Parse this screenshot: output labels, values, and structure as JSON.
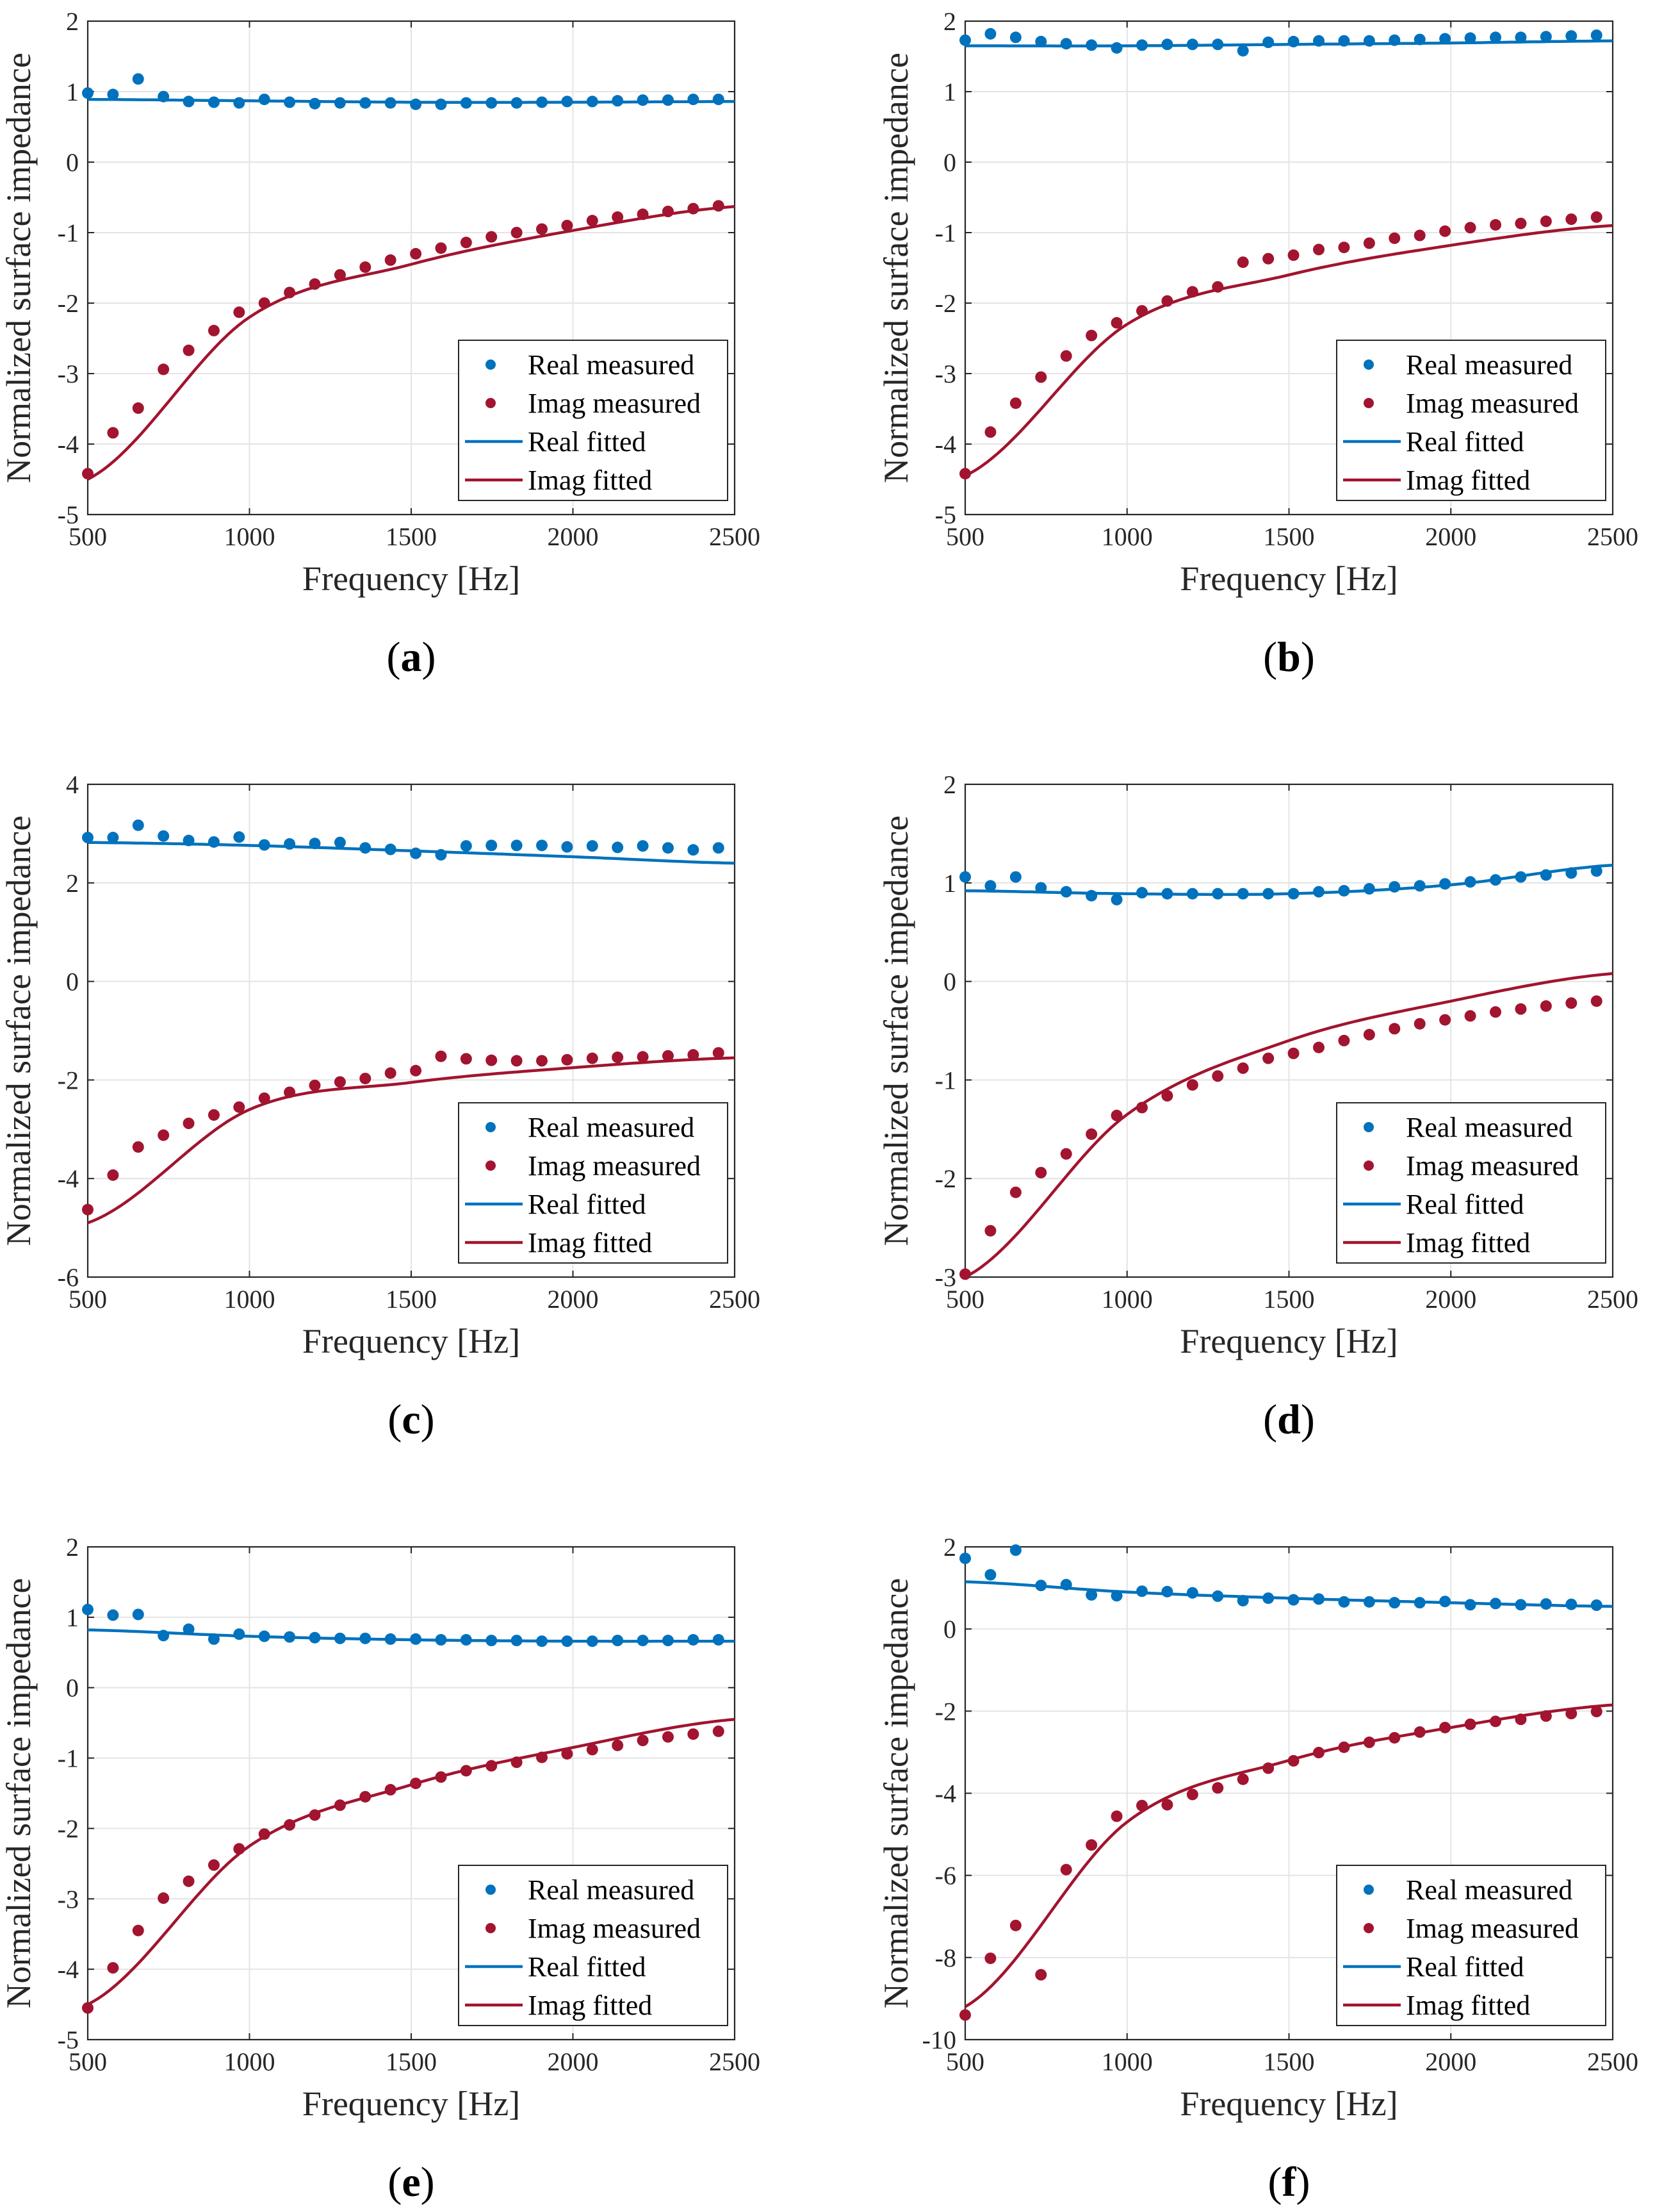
{
  "figure": {
    "colors": {
      "real": "#0072BD",
      "imag": "#A2142F"
    }
  },
  "chart_data": [
    {
      "type": "scatter",
      "panel_label": "a",
      "xlabel": "Frequency [Hz]",
      "ylabel": "Normalized surface impedance",
      "xlim": [
        500,
        2500
      ],
      "ylim": [
        -5,
        2
      ],
      "xticks": [
        500,
        1000,
        1500,
        2000,
        2500
      ],
      "yticks": [
        -5,
        -4,
        -3,
        -2,
        -1,
        0,
        1,
        2
      ],
      "grid": true,
      "legend_position": "bottom-right",
      "legend": [
        "Real measured",
        "Imag measured",
        "Real fitted",
        "Imag fitted"
      ],
      "x": [
        500,
        578,
        656,
        734,
        812,
        890,
        968,
        1046,
        1124,
        1202,
        1280,
        1358,
        1436,
        1514,
        1592,
        1670,
        1748,
        1826,
        1904,
        1982,
        2060,
        2138,
        2216,
        2294,
        2372,
        2450
      ],
      "series": [
        {
          "name": "Real measured",
          "style": "markers",
          "values": [
            0.98,
            0.96,
            1.18,
            0.93,
            0.86,
            0.85,
            0.84,
            0.89,
            0.85,
            0.83,
            0.84,
            0.84,
            0.84,
            0.82,
            0.82,
            0.84,
            0.84,
            0.84,
            0.85,
            0.86,
            0.86,
            0.87,
            0.88,
            0.88,
            0.89,
            0.89
          ]
        },
        {
          "name": "Imag measured",
          "style": "markers",
          "values": [
            -4.42,
            -3.84,
            -3.49,
            -2.94,
            -2.67,
            -2.39,
            -2.13,
            -2.0,
            -1.85,
            -1.73,
            -1.6,
            -1.49,
            -1.39,
            -1.3,
            -1.22,
            -1.14,
            -1.06,
            -1.0,
            -0.95,
            -0.9,
            -0.83,
            -0.78,
            -0.74,
            -0.7,
            -0.66,
            -0.62
          ]
        },
        {
          "name": "Real fitted",
          "style": "line",
          "values": [
            0.89,
            0.87,
            0.85,
            0.85,
            0.86
          ]
        },
        {
          "name": "Imag fitted",
          "style": "line",
          "values": [
            -4.5,
            -2.2,
            -1.45,
            -0.97,
            -0.63
          ]
        }
      ]
    },
    {
      "type": "scatter",
      "panel_label": "b",
      "xlabel": "Frequency [Hz]",
      "ylabel": "Normalized surface impedance",
      "xlim": [
        500,
        2500
      ],
      "ylim": [
        -5,
        2
      ],
      "xticks": [
        500,
        1000,
        1500,
        2000,
        2500
      ],
      "yticks": [
        -5,
        -4,
        -3,
        -2,
        -1,
        0,
        1,
        2
      ],
      "grid": true,
      "legend_position": "bottom-right",
      "legend": [
        "Real measured",
        "Imag measured",
        "Real fitted",
        "Imag fitted"
      ],
      "x": [
        500,
        578,
        656,
        734,
        812,
        890,
        968,
        1046,
        1124,
        1202,
        1280,
        1358,
        1436,
        1514,
        1592,
        1670,
        1748,
        1826,
        1904,
        1982,
        2060,
        2138,
        2216,
        2294,
        2372,
        2450
      ],
      "series": [
        {
          "name": "Real measured",
          "style": "markers",
          "values": [
            1.73,
            1.82,
            1.77,
            1.71,
            1.68,
            1.66,
            1.62,
            1.66,
            1.67,
            1.67,
            1.67,
            1.58,
            1.7,
            1.71,
            1.72,
            1.72,
            1.72,
            1.73,
            1.74,
            1.75,
            1.76,
            1.77,
            1.77,
            1.78,
            1.79,
            1.8
          ]
        },
        {
          "name": "Imag measured",
          "style": "markers",
          "values": [
            -4.42,
            -3.83,
            -3.42,
            -3.05,
            -2.75,
            -2.46,
            -2.28,
            -2.11,
            -1.97,
            -1.84,
            -1.77,
            -1.42,
            -1.37,
            -1.32,
            -1.24,
            -1.21,
            -1.15,
            -1.08,
            -1.04,
            -0.98,
            -0.93,
            -0.89,
            -0.87,
            -0.84,
            -0.81,
            -0.78
          ]
        },
        {
          "name": "Real fitted",
          "style": "line",
          "values": [
            1.65,
            1.65,
            1.67,
            1.69,
            1.72
          ]
        },
        {
          "name": "Imag fitted",
          "style": "line",
          "values": [
            -4.45,
            -2.3,
            -1.6,
            -1.18,
            -0.9
          ]
        }
      ]
    },
    {
      "type": "scatter",
      "panel_label": "c",
      "xlabel": "Frequency [Hz]",
      "ylabel": "Normalized surface impedance",
      "xlim": [
        500,
        2500
      ],
      "ylim": [
        -6,
        4
      ],
      "xticks": [
        500,
        1000,
        1500,
        2000,
        2500
      ],
      "yticks": [
        -6,
        -4,
        -2,
        0,
        2,
        4
      ],
      "grid": true,
      "legend_position": "bottom-right",
      "legend": [
        "Real measured",
        "Imag measured",
        "Real fitted",
        "Imag fitted"
      ],
      "x": [
        500,
        578,
        656,
        734,
        812,
        890,
        968,
        1046,
        1124,
        1202,
        1280,
        1358,
        1436,
        1514,
        1592,
        1670,
        1748,
        1826,
        1904,
        1982,
        2060,
        2138,
        2216,
        2294,
        2372,
        2450
      ],
      "series": [
        {
          "name": "Real measured",
          "style": "markers",
          "values": [
            2.92,
            2.92,
            3.17,
            2.95,
            2.86,
            2.83,
            2.93,
            2.77,
            2.79,
            2.8,
            2.82,
            2.71,
            2.68,
            2.6,
            2.57,
            2.75,
            2.76,
            2.76,
            2.76,
            2.73,
            2.75,
            2.72,
            2.75,
            2.71,
            2.67,
            2.71
          ]
        },
        {
          "name": "Imag measured",
          "style": "markers",
          "values": [
            -4.63,
            -3.93,
            -3.36,
            -3.12,
            -2.88,
            -2.71,
            -2.55,
            -2.37,
            -2.25,
            -2.11,
            -2.04,
            -1.97,
            -1.86,
            -1.81,
            -1.52,
            -1.57,
            -1.6,
            -1.61,
            -1.61,
            -1.59,
            -1.56,
            -1.54,
            -1.53,
            -1.51,
            -1.49,
            -1.45
          ]
        },
        {
          "name": "Real fitted",
          "style": "line",
          "values": [
            2.82,
            2.76,
            2.65,
            2.53,
            2.4
          ]
        },
        {
          "name": "Imag fitted",
          "style": "line",
          "values": [
            -4.9,
            -2.6,
            -2.05,
            -1.75,
            -1.55
          ]
        }
      ]
    },
    {
      "type": "scatter",
      "panel_label": "d",
      "xlabel": "Frequency [Hz]",
      "ylabel": "Normalized surface impedance",
      "xlim": [
        500,
        2500
      ],
      "ylim": [
        -3,
        2
      ],
      "xticks": [
        500,
        1000,
        1500,
        2000,
        2500
      ],
      "yticks": [
        -3,
        -2,
        -1,
        0,
        1,
        2
      ],
      "grid": true,
      "legend_position": "bottom-right",
      "legend": [
        "Real measured",
        "Imag measured",
        "Real fitted",
        "Imag fitted"
      ],
      "x": [
        500,
        578,
        656,
        734,
        812,
        890,
        968,
        1046,
        1124,
        1202,
        1280,
        1358,
        1436,
        1514,
        1592,
        1670,
        1748,
        1826,
        1904,
        1982,
        2060,
        2138,
        2216,
        2294,
        2372,
        2450
      ],
      "series": [
        {
          "name": "Real measured",
          "style": "markers",
          "values": [
            1.06,
            0.97,
            1.06,
            0.95,
            0.91,
            0.87,
            0.83,
            0.9,
            0.89,
            0.89,
            0.89,
            0.89,
            0.89,
            0.89,
            0.91,
            0.92,
            0.94,
            0.96,
            0.97,
            0.99,
            1.01,
            1.03,
            1.06,
            1.08,
            1.1,
            1.12
          ]
        },
        {
          "name": "Imag measured",
          "style": "markers",
          "values": [
            -2.97,
            -2.53,
            -2.14,
            -1.94,
            -1.75,
            -1.55,
            -1.36,
            -1.28,
            -1.16,
            -1.05,
            -0.96,
            -0.88,
            -0.78,
            -0.73,
            -0.67,
            -0.6,
            -0.54,
            -0.48,
            -0.43,
            -0.39,
            -0.35,
            -0.31,
            -0.28,
            -0.25,
            -0.22,
            -0.2
          ]
        },
        {
          "name": "Real fitted",
          "style": "line",
          "values": [
            0.92,
            0.89,
            0.89,
            0.98,
            1.18
          ]
        },
        {
          "name": "Imag fitted",
          "style": "line",
          "values": [
            -3.0,
            -1.35,
            -0.6,
            -0.2,
            0.08
          ]
        }
      ]
    },
    {
      "type": "scatter",
      "panel_label": "e",
      "xlabel": "Frequency [Hz]",
      "ylabel": "Normalized surface impedance",
      "xlim": [
        500,
        2500
      ],
      "ylim": [
        -5,
        2
      ],
      "xticks": [
        500,
        1000,
        1500,
        2000,
        2500
      ],
      "yticks": [
        -5,
        -4,
        -3,
        -2,
        -1,
        0,
        1,
        2
      ],
      "grid": true,
      "legend_position": "bottom-right",
      "legend": [
        "Real measured",
        "Imag measured",
        "Real fitted",
        "Imag fitted"
      ],
      "x": [
        500,
        578,
        656,
        734,
        812,
        890,
        968,
        1046,
        1124,
        1202,
        1280,
        1358,
        1436,
        1514,
        1592,
        1670,
        1748,
        1826,
        1904,
        1982,
        2060,
        2138,
        2216,
        2294,
        2372,
        2450
      ],
      "series": [
        {
          "name": "Real measured",
          "style": "markers",
          "values": [
            1.11,
            1.03,
            1.04,
            0.74,
            0.83,
            0.69,
            0.76,
            0.73,
            0.72,
            0.71,
            0.7,
            0.7,
            0.69,
            0.69,
            0.68,
            0.68,
            0.67,
            0.67,
            0.66,
            0.66,
            0.66,
            0.67,
            0.67,
            0.67,
            0.68,
            0.68
          ]
        },
        {
          "name": "Imag measured",
          "style": "markers",
          "values": [
            -4.55,
            -3.98,
            -3.45,
            -2.99,
            -2.75,
            -2.52,
            -2.29,
            -2.08,
            -1.95,
            -1.81,
            -1.67,
            -1.55,
            -1.45,
            -1.36,
            -1.27,
            -1.18,
            -1.11,
            -1.06,
            -0.99,
            -0.94,
            -0.88,
            -0.82,
            -0.75,
            -0.7,
            -0.66,
            -0.62
          ]
        },
        {
          "name": "Real fitted",
          "style": "line",
          "values": [
            0.82,
            0.73,
            0.68,
            0.66,
            0.66
          ]
        },
        {
          "name": "Imag fitted",
          "style": "line",
          "values": [
            -4.5,
            -2.25,
            -1.38,
            -0.85,
            -0.45
          ]
        }
      ]
    },
    {
      "type": "scatter",
      "panel_label": "f",
      "xlabel": "Frequency [Hz]",
      "ylabel": "Normalized surface impedance",
      "xlim": [
        500,
        2500
      ],
      "ylim": [
        -10,
        2
      ],
      "xticks": [
        500,
        1000,
        1500,
        2000,
        2500
      ],
      "yticks": [
        -10,
        -8,
        -6,
        -4,
        -2,
        0,
        2
      ],
      "grid": true,
      "legend_position": "bottom-right",
      "legend": [
        "Real measured",
        "Imag measured",
        "Real fitted",
        "Imag fitted"
      ],
      "x": [
        500,
        578,
        656,
        734,
        812,
        890,
        968,
        1046,
        1124,
        1202,
        1280,
        1358,
        1436,
        1514,
        1592,
        1670,
        1748,
        1826,
        1904,
        1982,
        2060,
        2138,
        2216,
        2294,
        2372,
        2450
      ],
      "series": [
        {
          "name": "Real measured",
          "style": "markers",
          "values": [
            1.72,
            1.32,
            1.92,
            1.06,
            1.08,
            0.83,
            0.81,
            0.92,
            0.91,
            0.88,
            0.8,
            0.69,
            0.75,
            0.71,
            0.73,
            0.66,
            0.66,
            0.64,
            0.64,
            0.67,
            0.59,
            0.62,
            0.59,
            0.61,
            0.6,
            0.58
          ]
        },
        {
          "name": "Imag measured",
          "style": "markers",
          "values": [
            -9.4,
            -8.02,
            -7.22,
            -8.42,
            -5.86,
            -5.26,
            -4.56,
            -4.3,
            -4.28,
            -4.03,
            -3.87,
            -3.66,
            -3.39,
            -3.21,
            -3.01,
            -2.88,
            -2.76,
            -2.65,
            -2.51,
            -2.4,
            -2.32,
            -2.25,
            -2.2,
            -2.12,
            -2.06,
            -2.01
          ]
        },
        {
          "name": "Real fitted",
          "style": "line",
          "values": [
            1.15,
            0.9,
            0.75,
            0.64,
            0.55
          ]
        },
        {
          "name": "Imag fitted",
          "style": "line",
          "values": [
            -9.2,
            -4.7,
            -3.2,
            -2.4,
            -1.85
          ]
        }
      ]
    }
  ]
}
